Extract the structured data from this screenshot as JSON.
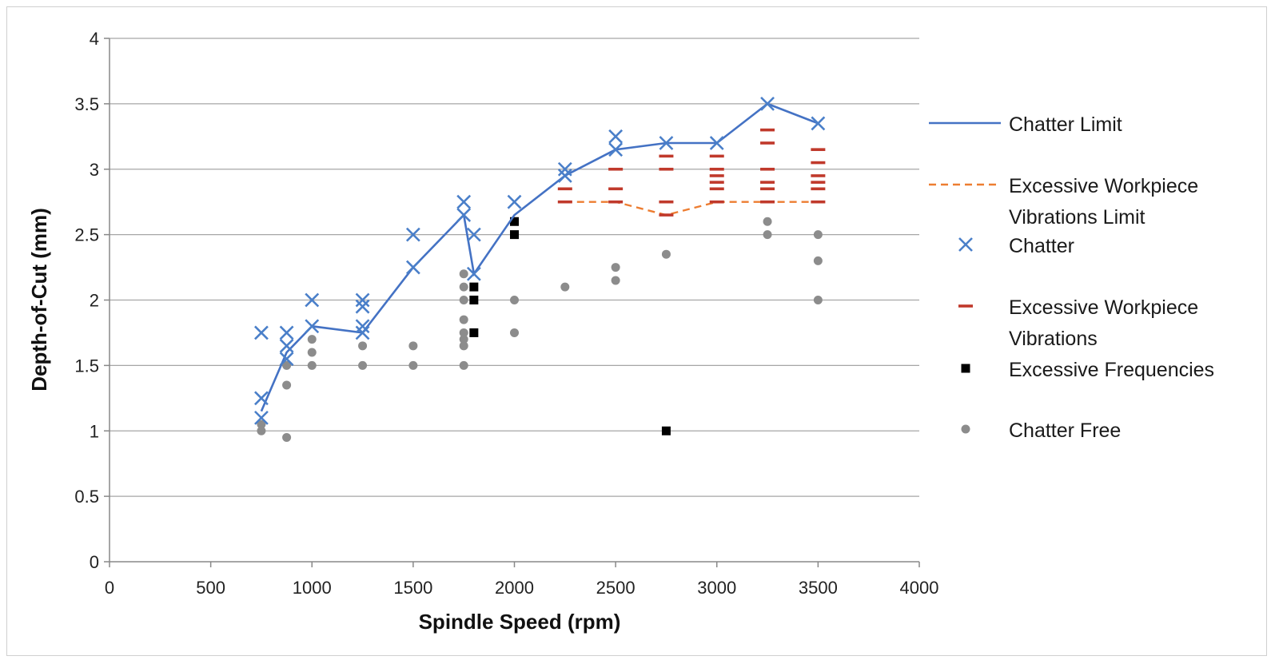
{
  "chart_data": {
    "type": "scatter",
    "xlabel": "Spindle Speed (rpm)",
    "ylabel": "Depth-of-Cut  (mm)",
    "xlim": [
      0,
      4000
    ],
    "ylim": [
      0,
      4
    ],
    "x_ticks": [
      "0",
      "500",
      "1000",
      "1500",
      "2000",
      "2500",
      "3000",
      "3500",
      "4000"
    ],
    "y_ticks": [
      "0",
      "0.5",
      "1",
      "1.5",
      "2",
      "2.5",
      "3",
      "3.5",
      "4"
    ],
    "grid": "horizontal",
    "legend_position": "right",
    "colors": {
      "chatter_limit": "#4472c4",
      "chatter": "#4a7fc9",
      "excessive_vibrations_limit": "#ed7d31",
      "excessive_vibrations": "#c0392b",
      "excessive_frequencies": "#000000",
      "chatter_free": "#8c8c8c",
      "grid": "#a6a6a6"
    },
    "legend": [
      {
        "key": "chatter_limit",
        "lines": [
          "Chatter Limit"
        ]
      },
      {
        "key": "excessive_vibrations_limit",
        "lines": [
          "Excessive Workpiece",
          "Vibrations Limit"
        ]
      },
      {
        "key": "chatter",
        "lines": [
          "Chatter"
        ]
      },
      {
        "key": "excessive_vibrations",
        "lines": [
          "Excessive Workpiece",
          "Vibrations"
        ]
      },
      {
        "key": "excessive_frequencies",
        "lines": [
          "Excessive Frequencies"
        ]
      },
      {
        "key": "chatter_free",
        "lines": [
          "Chatter Free"
        ]
      }
    ],
    "series": [
      {
        "name": "Chatter Limit",
        "key": "chatter_limit",
        "kind": "line",
        "points": [
          [
            750,
            1.15
          ],
          [
            875,
            1.6
          ],
          [
            1000,
            1.8
          ],
          [
            1250,
            1.75
          ],
          [
            1500,
            2.25
          ],
          [
            1750,
            2.65
          ],
          [
            1800,
            2.2
          ],
          [
            2000,
            2.65
          ],
          [
            2250,
            2.95
          ],
          [
            2500,
            3.15
          ],
          [
            2750,
            3.2
          ],
          [
            3000,
            3.2
          ],
          [
            3250,
            3.5
          ],
          [
            3500,
            3.35
          ]
        ]
      },
      {
        "name": "Excessive Workpiece Vibrations Limit",
        "key": "excessive_vibrations_limit",
        "kind": "dashed",
        "points": [
          [
            2250,
            2.75
          ],
          [
            2500,
            2.75
          ],
          [
            2750,
            2.65
          ],
          [
            3000,
            2.75
          ],
          [
            3250,
            2.75
          ],
          [
            3500,
            2.75
          ]
        ]
      },
      {
        "name": "Chatter",
        "key": "chatter",
        "kind": "x",
        "points": [
          [
            750,
            1.75
          ],
          [
            750,
            1.25
          ],
          [
            750,
            1.1
          ],
          [
            875,
            1.75
          ],
          [
            875,
            1.65
          ],
          [
            875,
            1.55
          ],
          [
            1000,
            2.0
          ],
          [
            1000,
            1.8
          ],
          [
            1250,
            2.0
          ],
          [
            1250,
            1.95
          ],
          [
            1250,
            1.8
          ],
          [
            1250,
            1.75
          ],
          [
            1500,
            2.5
          ],
          [
            1500,
            2.25
          ],
          [
            1750,
            2.75
          ],
          [
            1750,
            2.65
          ],
          [
            1800,
            2.5
          ],
          [
            1800,
            2.2
          ],
          [
            2000,
            2.75
          ],
          [
            2250,
            3.0
          ],
          [
            2250,
            2.95
          ],
          [
            2500,
            3.25
          ],
          [
            2500,
            3.15
          ],
          [
            2750,
            3.2
          ],
          [
            3000,
            3.2
          ],
          [
            3250,
            3.5
          ],
          [
            3500,
            3.35
          ]
        ]
      },
      {
        "name": "Excessive Workpiece Vibrations",
        "key": "excessive_vibrations",
        "kind": "dash",
        "points": [
          [
            2250,
            2.85
          ],
          [
            2250,
            2.75
          ],
          [
            2500,
            3.0
          ],
          [
            2500,
            2.85
          ],
          [
            2500,
            2.75
          ],
          [
            2750,
            3.1
          ],
          [
            2750,
            3.0
          ],
          [
            2750,
            2.75
          ],
          [
            2750,
            2.65
          ],
          [
            3000,
            3.1
          ],
          [
            3000,
            3.0
          ],
          [
            3000,
            2.95
          ],
          [
            3000,
            2.9
          ],
          [
            3000,
            2.85
          ],
          [
            3000,
            2.75
          ],
          [
            3250,
            3.3
          ],
          [
            3250,
            3.2
          ],
          [
            3250,
            3.0
          ],
          [
            3250,
            2.9
          ],
          [
            3250,
            2.85
          ],
          [
            3250,
            2.75
          ],
          [
            3500,
            3.15
          ],
          [
            3500,
            3.05
          ],
          [
            3500,
            2.95
          ],
          [
            3500,
            2.9
          ],
          [
            3500,
            2.85
          ],
          [
            3500,
            2.75
          ]
        ]
      },
      {
        "name": "Excessive Frequencies",
        "key": "excessive_frequencies",
        "kind": "square",
        "points": [
          [
            1800,
            2.1
          ],
          [
            1800,
            2.0
          ],
          [
            1800,
            1.75
          ],
          [
            2000,
            2.6
          ],
          [
            2000,
            2.5
          ],
          [
            2750,
            1.0
          ]
        ]
      },
      {
        "name": "Chatter Free",
        "key": "chatter_free",
        "kind": "dot",
        "points": [
          [
            750,
            1.05
          ],
          [
            750,
            1.0
          ],
          [
            875,
            1.5
          ],
          [
            875,
            1.35
          ],
          [
            875,
            0.95
          ],
          [
            1000,
            1.7
          ],
          [
            1000,
            1.6
          ],
          [
            1000,
            1.5
          ],
          [
            1250,
            1.65
          ],
          [
            1250,
            1.5
          ],
          [
            1500,
            1.65
          ],
          [
            1500,
            1.5
          ],
          [
            1750,
            2.2
          ],
          [
            1750,
            2.1
          ],
          [
            1750,
            2.0
          ],
          [
            1750,
            1.85
          ],
          [
            1750,
            1.75
          ],
          [
            1750,
            1.7
          ],
          [
            1750,
            1.65
          ],
          [
            1750,
            1.5
          ],
          [
            2000,
            2.0
          ],
          [
            2000,
            1.75
          ],
          [
            2250,
            2.1
          ],
          [
            2500,
            2.25
          ],
          [
            2500,
            2.15
          ],
          [
            2750,
            2.35
          ],
          [
            3250,
            2.6
          ],
          [
            3250,
            2.5
          ],
          [
            3500,
            2.5
          ],
          [
            3500,
            2.3
          ],
          [
            3500,
            2.0
          ]
        ]
      }
    ]
  }
}
